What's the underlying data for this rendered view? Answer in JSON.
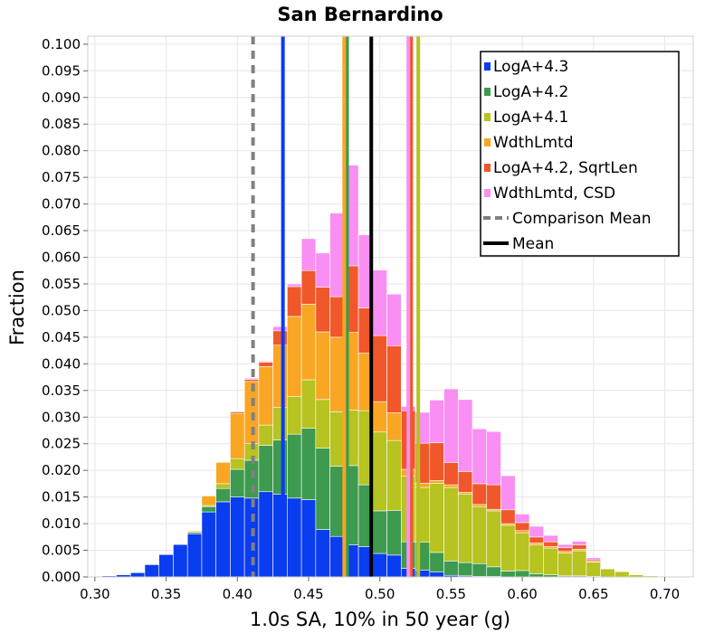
{
  "chart_data": {
    "type": "bar",
    "stacked": true,
    "title": "San Bernardino",
    "xlabel": "1.0s SA, 10% in 50 year (g)",
    "ylabel": "Fraction",
    "xlim": [
      0.295,
      0.72
    ],
    "ylim": [
      0,
      0.1015
    ],
    "xticks": [
      "0.30",
      "0.35",
      "0.40",
      "0.45",
      "0.50",
      "0.55",
      "0.60",
      "0.65",
      "0.70"
    ],
    "yticks": [
      "0.000",
      "0.005",
      "0.010",
      "0.015",
      "0.020",
      "0.025",
      "0.030",
      "0.035",
      "0.040",
      "0.045",
      "0.050",
      "0.055",
      "0.060",
      "0.065",
      "0.070",
      "0.075",
      "0.080",
      "0.085",
      "0.090",
      "0.095",
      "0.100"
    ],
    "grid": true,
    "legend_position": "top-right",
    "bin_width": 0.01,
    "x": [
      0.3,
      0.31,
      0.32,
      0.33,
      0.34,
      0.35,
      0.36,
      0.37,
      0.38,
      0.39,
      0.4,
      0.41,
      0.42,
      0.43,
      0.44,
      0.45,
      0.46,
      0.47,
      0.48,
      0.49,
      0.5,
      0.51,
      0.52,
      0.53,
      0.54,
      0.55,
      0.56,
      0.57,
      0.58,
      0.59,
      0.6,
      0.61,
      0.62,
      0.63,
      0.64,
      0.65,
      0.66,
      0.67,
      0.68,
      0.69,
      0.7
    ],
    "series": [
      {
        "name": "LogA+4.3",
        "color": "#0a3cf0",
        "values": [
          0.0001,
          0.0002,
          0.0004,
          0.0008,
          0.0023,
          0.0042,
          0.0061,
          0.0081,
          0.0122,
          0.0141,
          0.015,
          0.0148,
          0.016,
          0.0155,
          0.0148,
          0.0145,
          0.0089,
          0.0076,
          0.006,
          0.0057,
          0.0044,
          0.0041,
          0.0016,
          0.0013,
          0.0009,
          0.0003,
          0.0002,
          0.0001,
          0.0001,
          0,
          0,
          0,
          0,
          0,
          0,
          0,
          0,
          0,
          0,
          0,
          0
        ]
      },
      {
        "name": "LogA+4.2",
        "color": "#3d9a4f",
        "values": [
          0,
          0,
          0,
          0,
          0,
          0,
          0.0001,
          0.0003,
          0.001,
          0.0025,
          0.0052,
          0.0071,
          0.0087,
          0.0102,
          0.012,
          0.0134,
          0.0153,
          0.0132,
          0.0149,
          0.0116,
          0.008,
          0.0084,
          0.005,
          0.0052,
          0.0037,
          0.0027,
          0.0025,
          0.0024,
          0.0018,
          0.0011,
          0.0012,
          0.0006,
          0.0004,
          0.0002,
          0.0002,
          0.0001,
          0,
          0,
          0,
          0,
          0
        ]
      },
      {
        "name": "LogA+4.1",
        "color": "#b6c320",
        "values": [
          0,
          0,
          0,
          0,
          0,
          0,
          0,
          0.0001,
          0.0002,
          0.0009,
          0.002,
          0.0031,
          0.0038,
          0.0061,
          0.0071,
          0.0091,
          0.0091,
          0.0102,
          0.0104,
          0.0139,
          0.0148,
          0.0131,
          0.0123,
          0.0103,
          0.013,
          0.0138,
          0.0128,
          0.0107,
          0.0105,
          0.0086,
          0.0071,
          0.0054,
          0.005,
          0.0043,
          0.0047,
          0.0027,
          0.0015,
          0.001,
          0.0004,
          0.0002,
          0.0001
        ]
      },
      {
        "name": "WdthLmtd",
        "color": "#f8a624",
        "values": [
          0,
          0,
          0,
          0,
          0,
          0,
          0,
          0.0002,
          0.0018,
          0.004,
          0.0085,
          0.0117,
          0.011,
          0.0117,
          0.015,
          0.0142,
          0.0127,
          0.014,
          0.0146,
          0.0108,
          0.0057,
          0.0052,
          0.0013,
          0.0008,
          0.0005,
          0.0005,
          0.0004,
          0.0004,
          0.0003,
          0.0003,
          0.0004,
          0.0004,
          0.0003,
          0.0003,
          0.0003,
          0.0001,
          0.0001,
          0.0001,
          0,
          0,
          0
        ]
      },
      {
        "name": "LogA+4.2, SqrtLen",
        "color": "#f0572a",
        "values": [
          0,
          0,
          0,
          0,
          0,
          0,
          0,
          0,
          0,
          0,
          0.0003,
          0.0004,
          0.0008,
          0.0027,
          0.0056,
          0.0063,
          0.0084,
          0.0076,
          0.0125,
          0.0085,
          0.0124,
          0.0126,
          0.011,
          0.0075,
          0.0071,
          0.0042,
          0.0039,
          0.0039,
          0.0046,
          0.0026,
          0.0015,
          0.0011,
          0.0009,
          0.0007,
          0.0008,
          0.0003,
          0.0001,
          0.0001,
          0.0001,
          0,
          0
        ]
      },
      {
        "name": "WdthLmtd, CSD",
        "color": "#f98ff2",
        "values": [
          0,
          0,
          0,
          0,
          0,
          0,
          0,
          0,
          0,
          0,
          0.0001,
          0.0002,
          0.0002,
          0.0008,
          0.0005,
          0.006,
          0.0064,
          0.0157,
          0.0189,
          0.0137,
          0.0123,
          0.0097,
          0.0008,
          0.0058,
          0.008,
          0.0138,
          0.0135,
          0.0103,
          0.01,
          0.0064,
          0.0016,
          0.002,
          0.0012,
          0.0006,
          0.0007,
          0.0004,
          0.0001,
          0.0001,
          0,
          0,
          0
        ]
      }
    ],
    "vlines": [
      {
        "series": "LogA+4.3",
        "x": 0.432,
        "color": "#0a3cf0",
        "dash": false
      },
      {
        "series": "LogA+4.2",
        "x": 0.477,
        "color": "#3d9a4f",
        "dash": false
      },
      {
        "series": "LogA+4.1",
        "x": 0.527,
        "color": "#b6c320",
        "dash": false
      },
      {
        "series": "WdthLmtd",
        "x": 0.475,
        "color": "#f8a624",
        "dash": false
      },
      {
        "series": "LogA+4.2, SqrtLen",
        "x": 0.522,
        "color": "#f0572a",
        "dash": false
      },
      {
        "series": "WdthLmtd, CSD",
        "x": 0.52,
        "color": "#f98ff2",
        "dash": false
      },
      {
        "series": "Comparison Mean",
        "x": 0.411,
        "color": "#808080",
        "dash": true
      },
      {
        "series": "Mean",
        "x": 0.494,
        "color": "#000000",
        "dash": false
      }
    ],
    "legend": [
      {
        "label": "LogA+4.3",
        "color": "#0a3cf0",
        "kind": "box"
      },
      {
        "label": "LogA+4.2",
        "color": "#3d9a4f",
        "kind": "box"
      },
      {
        "label": "LogA+4.1",
        "color": "#b6c320",
        "kind": "box"
      },
      {
        "label": "WdthLmtd",
        "color": "#f8a624",
        "kind": "box"
      },
      {
        "label": "LogA+4.2, SqrtLen",
        "color": "#f0572a",
        "kind": "box"
      },
      {
        "label": "WdthLmtd, CSD",
        "color": "#f98ff2",
        "kind": "box"
      },
      {
        "label": "Comparison Mean",
        "color": "#808080",
        "kind": "dash"
      },
      {
        "label": "Mean",
        "color": "#000000",
        "kind": "line"
      }
    ]
  }
}
